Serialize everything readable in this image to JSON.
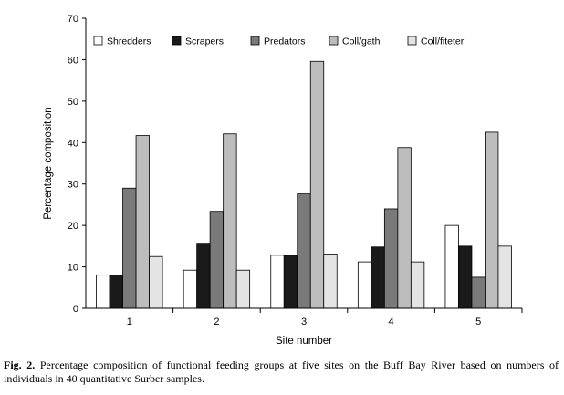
{
  "chart_data": {
    "type": "bar",
    "categories": [
      "1",
      "2",
      "3",
      "4",
      "5"
    ],
    "series": [
      {
        "name": "Shredders",
        "color": "#ffffff",
        "values": [
          8.0,
          9.2,
          12.8,
          11.2,
          20.0
        ]
      },
      {
        "name": "Scrapers",
        "color": "#1a1a1a",
        "values": [
          8.0,
          15.7,
          12.8,
          14.8,
          15.0
        ]
      },
      {
        "name": "Predators",
        "color": "#7a7a7a",
        "values": [
          29.0,
          23.4,
          27.6,
          24.0,
          7.5
        ]
      },
      {
        "name": "Coll/gath",
        "color": "#bdbdbd",
        "values": [
          41.7,
          42.1,
          59.6,
          38.8,
          42.5
        ]
      },
      {
        "name": "Coll/fiteter",
        "color": "#e4e4e4",
        "values": [
          12.5,
          9.2,
          13.1,
          11.2,
          15.0
        ]
      }
    ],
    "xlabel": "Site number",
    "ylabel": "Percentage composition",
    "ylim": [
      0,
      70
    ],
    "yticks": [
      "0",
      "10",
      "20",
      "30",
      "40",
      "50",
      "60",
      "70"
    ],
    "grid": false,
    "legend_position": "top"
  },
  "caption": {
    "label": "Fig. 2.",
    "text": "Percentage composition of functional feeding groups at five sites on the Buff Bay River based on numbers of individuals in 40 quantitative Surber samples."
  }
}
